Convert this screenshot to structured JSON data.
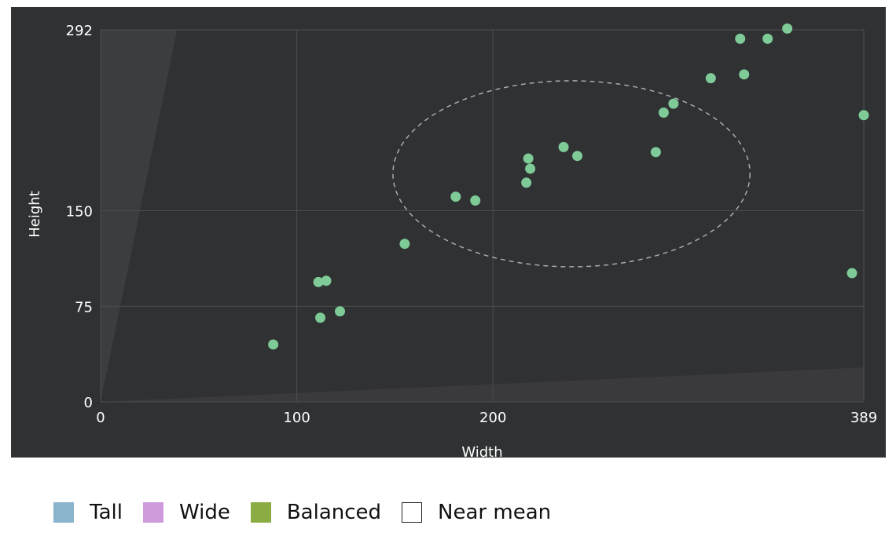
{
  "chart_data": {
    "type": "scatter",
    "xlabel": "Width",
    "ylabel": "Height",
    "xlim": [
      0,
      389
    ],
    "ylim": [
      0,
      292
    ],
    "x_ticks": [
      0,
      100,
      200,
      389
    ],
    "y_ticks": [
      0,
      75,
      150,
      292
    ],
    "grid": true,
    "points": [
      {
        "x": 88,
        "y": 45
      },
      {
        "x": 112,
        "y": 66
      },
      {
        "x": 122,
        "y": 71
      },
      {
        "x": 111,
        "y": 94
      },
      {
        "x": 115,
        "y": 95
      },
      {
        "x": 155,
        "y": 124
      },
      {
        "x": 181,
        "y": 161
      },
      {
        "x": 191,
        "y": 158
      },
      {
        "x": 217,
        "y": 172
      },
      {
        "x": 218,
        "y": 191
      },
      {
        "x": 219,
        "y": 183
      },
      {
        "x": 236,
        "y": 200
      },
      {
        "x": 243,
        "y": 193
      },
      {
        "x": 283,
        "y": 196
      },
      {
        "x": 287,
        "y": 227
      },
      {
        "x": 292,
        "y": 234
      },
      {
        "x": 311,
        "y": 254
      },
      {
        "x": 326,
        "y": 285
      },
      {
        "x": 328,
        "y": 257
      },
      {
        "x": 340,
        "y": 285
      },
      {
        "x": 350,
        "y": 293
      },
      {
        "x": 383,
        "y": 101
      },
      {
        "x": 389,
        "y": 225
      }
    ],
    "mean_ellipse": {
      "cx": 240,
      "cy": 179,
      "rx": 91,
      "ry": 73
    },
    "regions": [
      {
        "name": "tall",
        "polygon": [
          [
            0,
            0
          ],
          [
            0,
            292
          ],
          [
            39,
            292
          ]
        ]
      },
      {
        "name": "wide",
        "polygon": [
          [
            0,
            0
          ],
          [
            389,
            0
          ],
          [
            389,
            27
          ]
        ]
      }
    ],
    "colors": {
      "background": "#2f3133",
      "plot_area": "#2f3133",
      "point": "#7ecb98",
      "grid": "#4c4e50",
      "tall_region": "#3b3d40",
      "wide_region": "#3a393d",
      "ellipse": "#a8aaab"
    }
  },
  "legend": [
    {
      "label": "Tall",
      "color": "#8ab3cc",
      "border": "#8ab3cc"
    },
    {
      "label": "Wide",
      "color": "#cf9adc",
      "border": "#cf9adc"
    },
    {
      "label": "Balanced",
      "color": "#8bac43",
      "border": "#8bac43"
    },
    {
      "label": "Near mean",
      "color": "#ffffff",
      "border": "#222222"
    }
  ]
}
